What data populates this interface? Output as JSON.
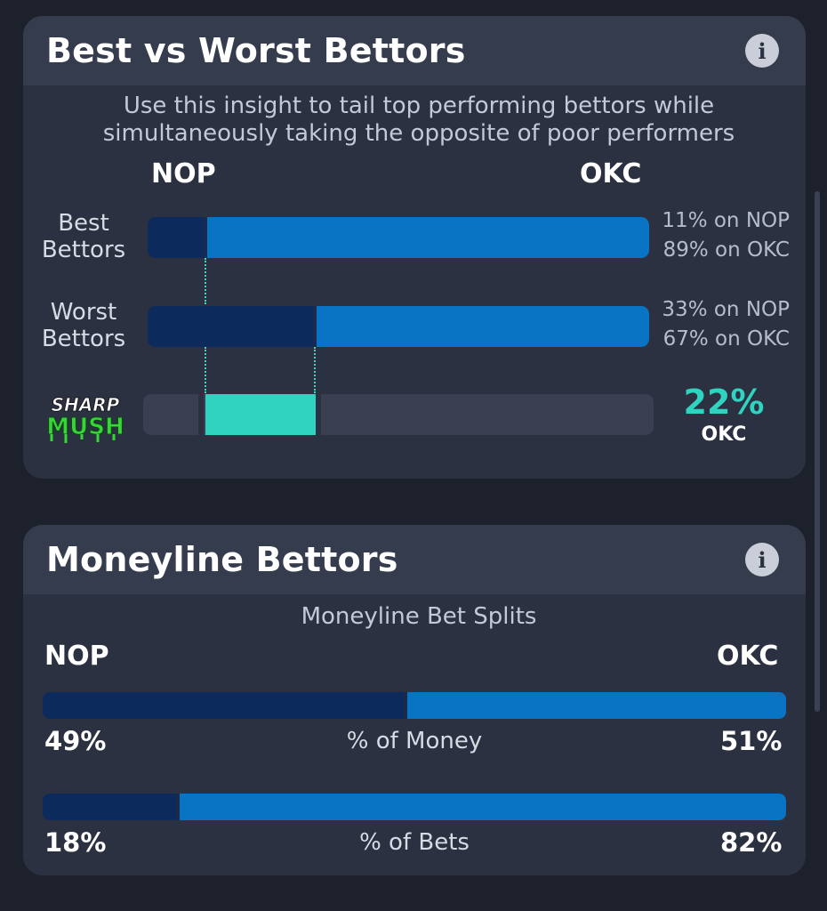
{
  "best_worst": {
    "title": "Best vs Worst Bettors",
    "info_icon": "i",
    "subtitle_line1": "Use this insight to tail top performing bettors while",
    "subtitle_line2": "simultaneously taking the opposite of poor performers",
    "team_left": "NOP",
    "team_right": "OKC",
    "rows": [
      {
        "label_line1": "Best",
        "label_line2": "Bettors",
        "left_pct_text": "11% on NOP",
        "right_pct_text": "89% on OKC",
        "left_share": 0.11,
        "right_share": 0.89
      },
      {
        "label_line1": "Worst",
        "label_line2": "Bettors",
        "left_pct_text": "33% on NOP",
        "right_pct_text": "67% on OKC",
        "left_share": 0.33,
        "right_share": 0.67
      }
    ],
    "logo_line1": "SHARP",
    "logo_line2": "MUSH",
    "result_pct": "22%",
    "result_team": "OKC",
    "result_range": [
      0.11,
      0.33
    ]
  },
  "moneyline": {
    "title": "Moneyline Bettors",
    "info_icon": "i",
    "subtitle": "Moneyline Bet Splits",
    "team_left": "NOP",
    "team_right": "OKC",
    "rows": [
      {
        "left_pct": "49%",
        "label": "% of Money",
        "right_pct": "51%",
        "left_share": 0.49,
        "right_share": 0.51
      },
      {
        "left_pct": "18%",
        "label": "% of Bets",
        "right_pct": "82%",
        "left_share": 0.18,
        "right_share": 0.82
      }
    ]
  },
  "colors": {
    "background": "#1d212c",
    "card": "#2b3141",
    "card_header": "#353c4d",
    "nop_bar": "#0d2a5c",
    "okc_bar": "#0a74c4",
    "accent_teal": "#2fd3bf"
  }
}
